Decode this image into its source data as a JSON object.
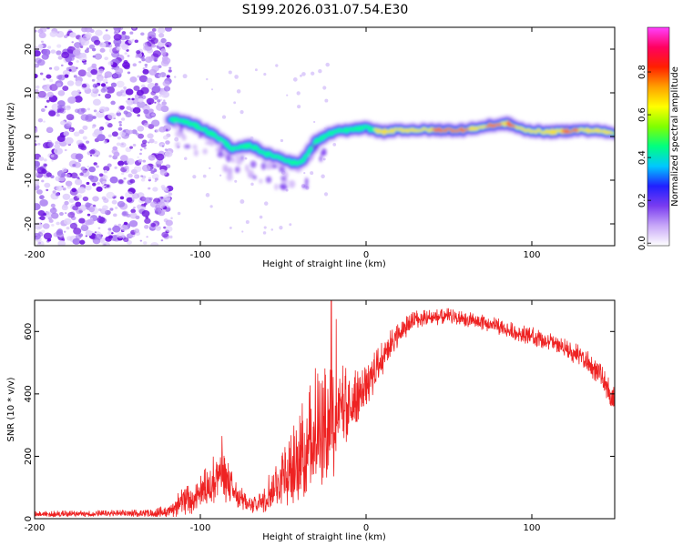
{
  "title": "S199.2026.031.07.54.E30",
  "chart_data": [
    {
      "type": "heatmap",
      "description_of_marks": "Spectrogram of normalized spectral amplitude vs height",
      "xlabel": "Height of straight line (km)",
      "ylabel": "Frequency (Hz)",
      "xlim": [
        -200,
        150
      ],
      "ylim": [
        -25,
        25
      ],
      "xticks": [
        -200,
        -100,
        0,
        100
      ],
      "yticks": [
        20,
        10,
        0,
        -10,
        -20
      ],
      "colorbar": {
        "label": "Normalized spectral amplitude",
        "range": [
          0,
          1
        ],
        "ticks": [
          "0.0",
          "0.2",
          "0.4",
          "0.6",
          "0.8"
        ],
        "colors": [
          "#ffffff",
          "#c8a8f8",
          "#7a3cf0",
          "#2020ff",
          "#00c8ff",
          "#00ff80",
          "#80ff00",
          "#ffff00",
          "#ffa000",
          "#ff2000",
          "#ff0060",
          "#ff40ff"
        ]
      },
      "ridge": {
        "x": [
          -118,
          -110,
          -100,
          -90,
          -80,
          -70,
          -60,
          -50,
          -45,
          -40,
          -35,
          -30,
          -25,
          -20,
          -10,
          0,
          10,
          20,
          40,
          60,
          75,
          85,
          95,
          110,
          130,
          150
        ],
        "y": [
          4,
          3.5,
          2,
          0,
          -3,
          -2,
          -4,
          -5,
          -6,
          -6,
          -4,
          -1,
          0,
          1,
          1.5,
          2,
          1,
          1.5,
          1.5,
          1.5,
          2.5,
          3,
          1.5,
          1,
          1.5,
          1
        ]
      },
      "noise_region_x": [
        -200,
        -118
      ],
      "noise_colors": [
        "#c8a8f8",
        "#a070f0",
        "#6a10e0",
        "#e0d0fc"
      ]
    },
    {
      "type": "line",
      "xlabel": "Height of straight line (km)",
      "ylabel": "SNR (10 * v/v)",
      "xlim": [
        -200,
        150
      ],
      "ylim": [
        0,
        700
      ],
      "xticks": [
        -200,
        -100,
        0,
        100
      ],
      "yticks": [
        0,
        200,
        400,
        600
      ],
      "color": "#ee2222",
      "envelope": {
        "x": [
          -200,
          -130,
          -120,
          -110,
          -100,
          -95,
          -90,
          -85,
          -80,
          -75,
          -70,
          -65,
          -60,
          -55,
          -50,
          -45,
          -40,
          -35,
          -30,
          -25,
          -20,
          -15,
          -10,
          -5,
          0,
          10,
          20,
          30,
          50,
          70,
          90,
          110,
          130,
          140,
          150
        ],
        "mean": [
          15,
          18,
          25,
          55,
          80,
          110,
          150,
          130,
          90,
          60,
          45,
          60,
          80,
          110,
          140,
          160,
          200,
          250,
          300,
          320,
          330,
          350,
          380,
          400,
          420,
          520,
          600,
          640,
          650,
          630,
          600,
          570,
          520,
          470,
          380
        ],
        "amplitude": [
          10,
          12,
          20,
          50,
          60,
          80,
          90,
          80,
          50,
          40,
          30,
          40,
          60,
          80,
          100,
          130,
          150,
          180,
          200,
          220,
          220,
          150,
          120,
          90,
          70,
          60,
          40,
          30,
          25,
          25,
          30,
          30,
          35,
          40,
          40
        ]
      },
      "peaks": [
        {
          "x": -87,
          "y": 265
        },
        {
          "x": -21,
          "y": 700
        },
        {
          "x": -18,
          "y": 640
        }
      ]
    }
  ]
}
